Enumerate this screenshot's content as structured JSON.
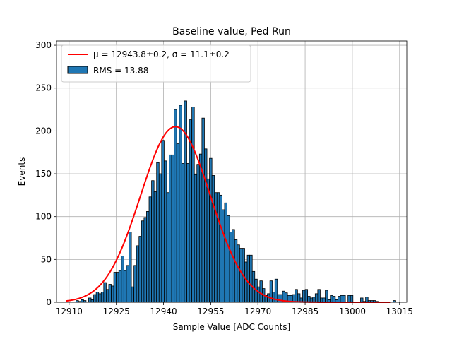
{
  "chart_data": {
    "type": "bar",
    "title": "Baseline value, Ped Run",
    "xlabel": "Sample Value [ADC Counts]",
    "ylabel": "Events",
    "xlim": [
      12906.0,
      13017.3
    ],
    "ylim": [
      0,
      305
    ],
    "xticks": [
      12910,
      12925,
      12940,
      12955,
      12970,
      12985,
      13000,
      13015
    ],
    "yticks": [
      0,
      50,
      100,
      150,
      200,
      250,
      300
    ],
    "grid": true,
    "legend_position": "top-left",
    "bin_start": 12909.0,
    "bin_width": 0.8,
    "counts": [
      0,
      0,
      0,
      0,
      2,
      1,
      3,
      2,
      0,
      5,
      3,
      9,
      12,
      10,
      12,
      23,
      15,
      21,
      19,
      35,
      35,
      37,
      54,
      37,
      43,
      82,
      18,
      43,
      66,
      77,
      95,
      99,
      106,
      123,
      142,
      129,
      163,
      150,
      189,
      165,
      128,
      172,
      172,
      225,
      185,
      230,
      162,
      235,
      162,
      213,
      228,
      149,
      161,
      173,
      215,
      179,
      144,
      168,
      148,
      128,
      128,
      125,
      108,
      116,
      101,
      82,
      85,
      73,
      67,
      63,
      63,
      47,
      55,
      55,
      36,
      27,
      18,
      25,
      16,
      8,
      10,
      25,
      12,
      27,
      9,
      9,
      13,
      11,
      8,
      8,
      9,
      15,
      10,
      5,
      14,
      15,
      7,
      5,
      6,
      10,
      15,
      5,
      5,
      14,
      3,
      8,
      7,
      3,
      7,
      8,
      8,
      0,
      8,
      8,
      0,
      0,
      0,
      5,
      1,
      6,
      2,
      2,
      2,
      1,
      0,
      0,
      0,
      0,
      0,
      0,
      2,
      0,
      0,
      0
    ],
    "bar_color": "#1f77b4",
    "fit": {
      "type": "gaussian",
      "amplitude": 205,
      "mean": 12943.8,
      "sigma": 11.1,
      "x_range": [
        12909,
        13012
      ],
      "color": "#ff0000"
    },
    "legend": [
      {
        "label": "μ = 12943.8±0.2, σ = 11.1±0.2",
        "kind": "line",
        "color": "#ff0000"
      },
      {
        "label": "RMS = 13.88",
        "kind": "patch",
        "color": "#1f77b4"
      }
    ]
  }
}
